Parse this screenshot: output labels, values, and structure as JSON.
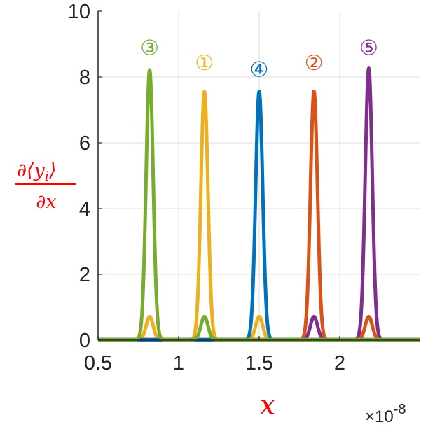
{
  "chart_data": {
    "type": "line",
    "title": "",
    "xlabel": "x",
    "ylabel": {
      "numerator": "∂⟨y",
      "subscript": "i",
      "close": "⟩",
      "denominator": "∂x"
    },
    "x_scale_label": {
      "base": "×10",
      "exponent": "-8"
    },
    "xlim": [
      0.5,
      2.5
    ],
    "ylim": [
      0,
      10
    ],
    "x_ticks": [
      0.5,
      1,
      1.5,
      2
    ],
    "x_tick_labels": [
      "0.5",
      "1",
      "1.5",
      "2"
    ],
    "y_ticks": [
      0,
      2,
      4,
      6,
      8,
      10
    ],
    "y_tick_labels": [
      "0",
      "2",
      "4",
      "6",
      "8",
      "10"
    ],
    "grid": true,
    "legend": "none",
    "series": [
      {
        "marker": "①",
        "color": "#edb120",
        "peaks": [
          {
            "x": 0.82,
            "height": 0.7
          },
          {
            "x": 1.16,
            "height": 7.55
          },
          {
            "x": 1.5,
            "height": 0.7
          }
        ]
      },
      {
        "marker": "②",
        "color": "#d95319",
        "peaks": [
          {
            "x": 1.84,
            "height": 7.55
          },
          {
            "x": 2.18,
            "height": 0.7
          }
        ]
      },
      {
        "marker": "③",
        "color": "#77ac30",
        "peaks": [
          {
            "x": 0.82,
            "height": 8.2
          },
          {
            "x": 1.16,
            "height": 0.7
          }
        ]
      },
      {
        "marker": "④",
        "color": "#0072bd",
        "peaks": [
          {
            "x": 1.5,
            "height": 7.55
          }
        ]
      },
      {
        "marker": "⑤",
        "color": "#7e2f8e",
        "peaks": [
          {
            "x": 1.84,
            "height": 0.7
          },
          {
            "x": 2.18,
            "height": 8.25
          }
        ]
      }
    ],
    "peak_width": 0.022,
    "draw_order": [
      4,
      1,
      0,
      3,
      2
    ],
    "annotations": [
      {
        "text": "③",
        "x": 0.82,
        "y": 8.9,
        "color": "#77ac30"
      },
      {
        "text": "①",
        "x": 1.16,
        "y": 8.45,
        "color": "#edb120"
      },
      {
        "text": "④",
        "x": 1.5,
        "y": 8.25,
        "color": "#0072bd"
      },
      {
        "text": "②",
        "x": 1.84,
        "y": 8.45,
        "color": "#d95319"
      },
      {
        "text": "⑤",
        "x": 2.18,
        "y": 8.9,
        "color": "#7e2f8e"
      }
    ]
  }
}
